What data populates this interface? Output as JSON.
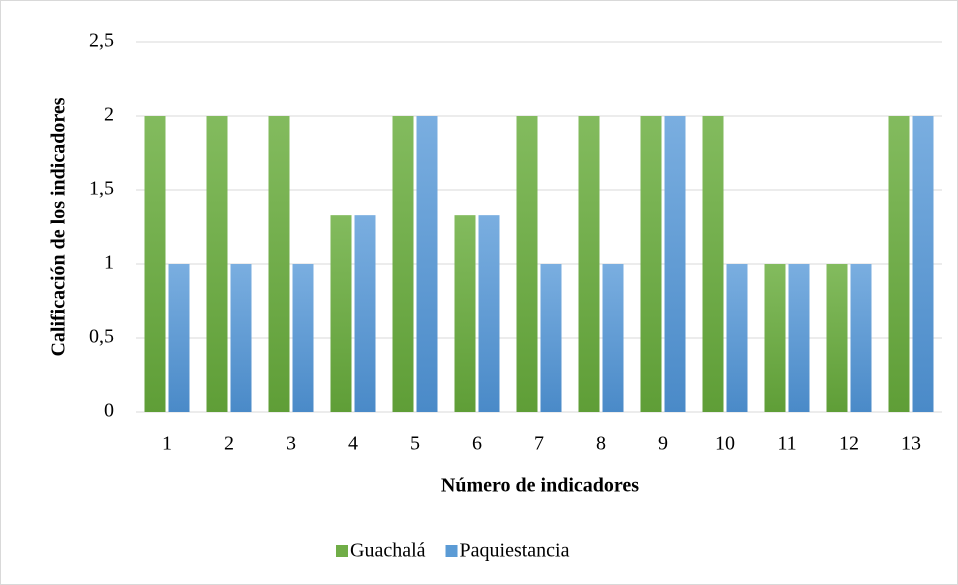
{
  "chart_data": {
    "type": "bar",
    "x_label": "Número de indicadores",
    "y_label": "Calificación de los indicadores",
    "categories": [
      "1",
      "2",
      "3",
      "4",
      "5",
      "6",
      "7",
      "8",
      "9",
      "10",
      "11",
      "12",
      "13"
    ],
    "series": [
      {
        "name": "Guachalá",
        "color": "#70ad47",
        "values": [
          2,
          2,
          2,
          1.33,
          2,
          1.33,
          2,
          2,
          2,
          2,
          1,
          1,
          2
        ]
      },
      {
        "name": "Paquiestancia",
        "color": "#5b9bd5",
        "values": [
          1,
          1,
          1,
          1.33,
          2,
          1.33,
          1,
          1,
          2,
          1,
          1,
          1,
          2
        ]
      }
    ],
    "ylim": [
      0,
      2.5
    ],
    "yticks": [
      0,
      {
        "value": 0.5,
        "label": "0,5"
      },
      1,
      {
        "value": 1.5,
        "label": "1,5"
      },
      2,
      {
        "value": 2.5,
        "label": "2,5"
      }
    ],
    "grid": true,
    "legend": "bottom"
  }
}
